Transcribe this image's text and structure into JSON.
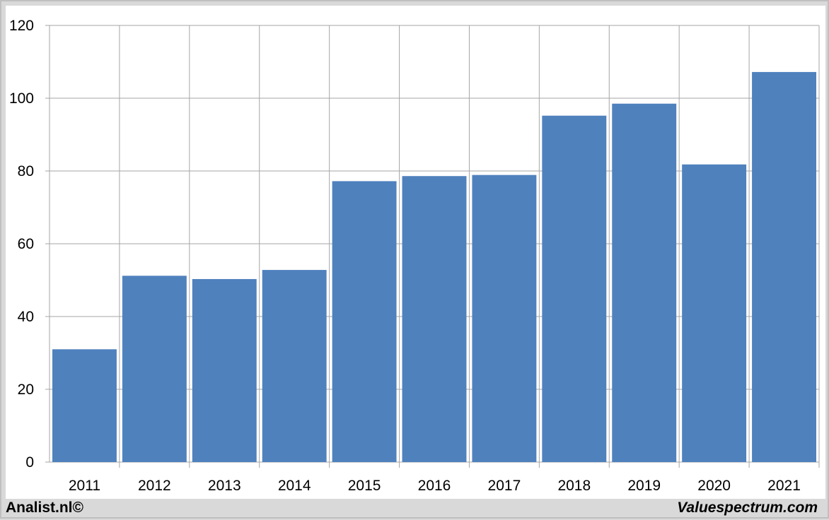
{
  "footer": {
    "left": "Analist.nl©",
    "right": "Valuespectrum.com"
  },
  "colors": {
    "bar": "#4f81bd",
    "grid": "#a6a6a6",
    "background": "#ffffff",
    "frame": "#d9d9d9"
  },
  "chart_data": {
    "type": "bar",
    "categories": [
      "2011",
      "2012",
      "2013",
      "2014",
      "2015",
      "2016",
      "2017",
      "2018",
      "2019",
      "2020",
      "2021"
    ],
    "values": [
      31,
      51.2,
      50.3,
      52.8,
      77.2,
      78.6,
      78.9,
      95.2,
      98.5,
      81.8,
      107.2
    ],
    "title": "",
    "xlabel": "",
    "ylabel": "",
    "ylim": [
      0,
      120
    ],
    "yticks": [
      "0",
      "20",
      "40",
      "60",
      "80",
      "100",
      "120"
    ],
    "grid": true,
    "legend": "none"
  }
}
